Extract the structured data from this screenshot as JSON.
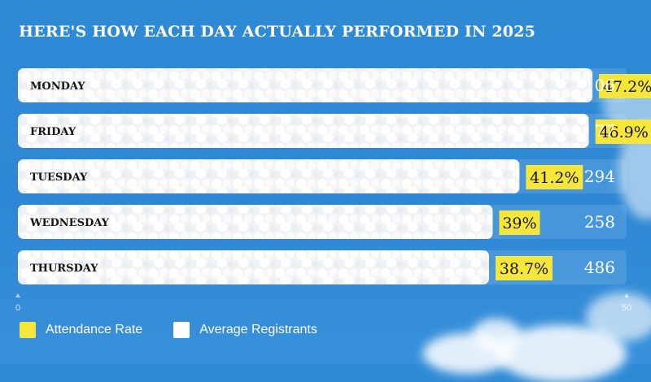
{
  "colors": {
    "attendance": "#f6e63a",
    "registrants": "#ffffff",
    "background": "#2f8ad6"
  },
  "chart_data": {
    "type": "bar",
    "orientation": "horizontal",
    "title": "HERE'S HOW EACH DAY ACTUALLY PERFORMED IN 2025",
    "categories": [
      "MONDAY",
      "FRIDAY",
      "TUESDAY",
      "WEDNESDAY",
      "THURSDAY"
    ],
    "series": [
      {
        "name": "Attendance Rate",
        "values": [
          47.2,
          46.9,
          41.2,
          39,
          38.7
        ],
        "labels": [
          "47.2%",
          "46.9%",
          "41.2%",
          "39%",
          "38.7%"
        ]
      },
      {
        "name": "Average Registrants",
        "values": [
          106,
          77,
          294,
          258,
          486
        ],
        "labels": [
          "106",
          "77",
          "294",
          "258",
          "486"
        ]
      }
    ],
    "xlim": [
      0,
      50
    ],
    "ticks": [
      "0",
      "50"
    ],
    "legend": "bottom-left",
    "grid": false
  }
}
